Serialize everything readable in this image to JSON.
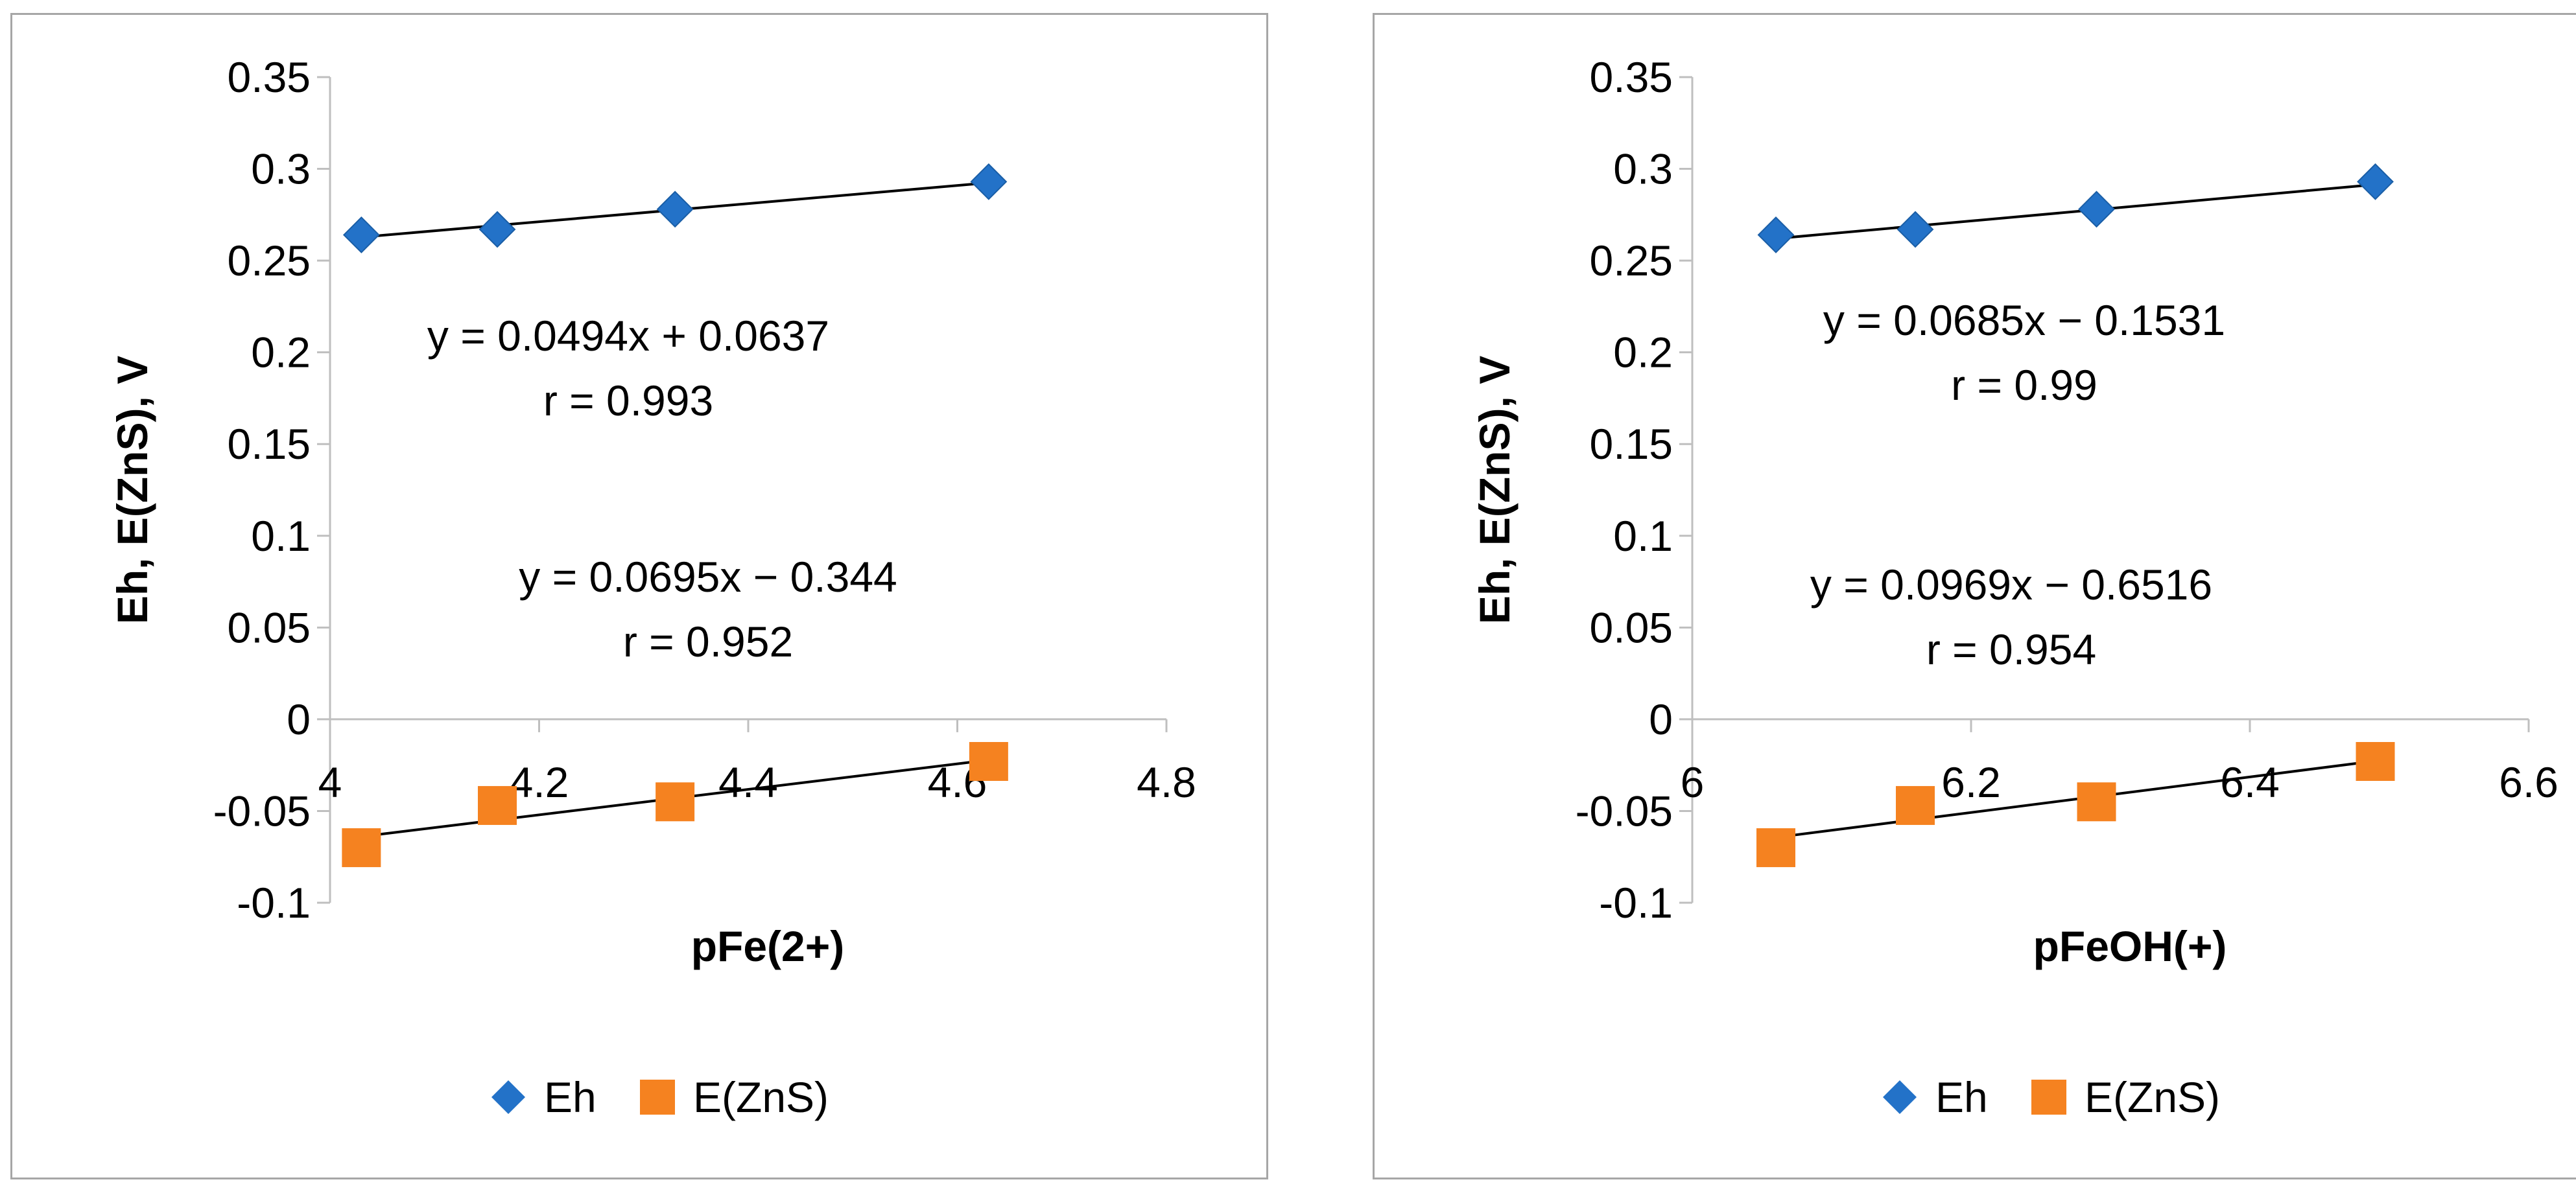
{
  "colors": {
    "eh": "#2372c8",
    "ezns": "#f58220",
    "axis": "#bfbfbf",
    "trend": "#000000",
    "border": "#a6a6a6"
  },
  "legend": {
    "eh": "Eh",
    "ezns": "E(ZnS)"
  },
  "chart_data": [
    {
      "type": "scatter",
      "xlabel": "pFe(2+)",
      "ylabel": "Eh, E(ZnS), V",
      "xlim": [
        4,
        4.8
      ],
      "ylim": [
        -0.1,
        0.35
      ],
      "x_ticks": [
        "4",
        "4.2",
        "4.4",
        "4.6",
        "4.8"
      ],
      "y_ticks": [
        "-0.1",
        "-0.05",
        "0",
        "0.05",
        "0.1",
        "0.15",
        "0.2",
        "0.25",
        "0.3",
        "0.35"
      ],
      "grid": false,
      "legend_position": "bottom",
      "series": [
        {
          "name": "Eh",
          "marker": "diamond",
          "x": [
            4.03,
            4.16,
            4.33,
            4.63
          ],
          "y": [
            0.264,
            0.267,
            0.278,
            0.293
          ],
          "trendline": {
            "slope": 0.0494,
            "intercept": 0.0637
          }
        },
        {
          "name": "E(ZnS)",
          "marker": "square",
          "x": [
            4.03,
            4.16,
            4.33,
            4.63
          ],
          "y": [
            -0.07,
            -0.047,
            -0.045,
            -0.023
          ],
          "trendline": {
            "slope": 0.0695,
            "intercept": -0.344
          }
        }
      ],
      "annotations": [
        {
          "equation": "y = 0.0494x + 0.0637",
          "r": "r = 0.993"
        },
        {
          "equation": "y = 0.0695x − 0.344",
          "r": "r = 0.952"
        }
      ]
    },
    {
      "type": "scatter",
      "xlabel": "pFeOH(+)",
      "ylabel": "Eh, E(ZnS), V",
      "xlim": [
        6,
        6.6
      ],
      "ylim": [
        -0.1,
        0.35
      ],
      "x_ticks": [
        "6",
        "6.2",
        "6.4",
        "6.6"
      ],
      "y_ticks": [
        "-0.1",
        "-0.05",
        "0",
        "0.05",
        "0.1",
        "0.15",
        "0.2",
        "0.25",
        "0.3",
        "0.35"
      ],
      "grid": false,
      "legend_position": "bottom",
      "series": [
        {
          "name": "Eh",
          "marker": "diamond",
          "x": [
            6.06,
            6.16,
            6.29,
            6.49
          ],
          "y": [
            0.264,
            0.267,
            0.278,
            0.293
          ],
          "trendline": {
            "slope": 0.0685,
            "intercept": -0.1531
          }
        },
        {
          "name": "E(ZnS)",
          "marker": "square",
          "x": [
            6.06,
            6.16,
            6.29,
            6.49
          ],
          "y": [
            -0.07,
            -0.047,
            -0.045,
            -0.023
          ],
          "trendline": {
            "slope": 0.0969,
            "intercept": -0.6516
          }
        }
      ],
      "annotations": [
        {
          "equation": "y = 0.0685x − 0.1531",
          "r": "r = 0.99"
        },
        {
          "equation": "y = 0.0969x − 0.6516",
          "r": "r = 0.954"
        }
      ]
    }
  ]
}
